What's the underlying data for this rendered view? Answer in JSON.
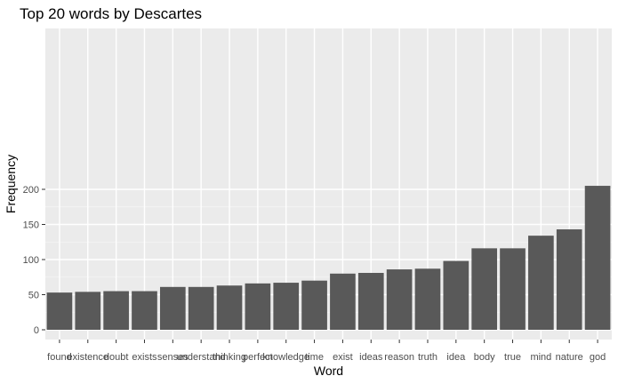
{
  "chart_data": {
    "type": "bar",
    "title": "Top 20 words by Descartes",
    "xlabel": "Word",
    "ylabel": "Frequency",
    "categories": [
      "found",
      "existence",
      "doubt",
      "exists",
      "senses",
      "understand",
      "thinking",
      "perfect",
      "knowledge",
      "time",
      "exist",
      "ideas",
      "reason",
      "truth",
      "idea",
      "body",
      "true",
      "mind",
      "nature",
      "god"
    ],
    "values": [
      53,
      54,
      55,
      55,
      61,
      61,
      63,
      66,
      67,
      70,
      80,
      81,
      86,
      87,
      98,
      116,
      116,
      134,
      143,
      205
    ],
    "ylim": [
      0,
      213
    ],
    "yticks": [
      0,
      50,
      100,
      150,
      200
    ],
    "ytick_labels": [
      "0",
      "50",
      "100",
      "150",
      "200"
    ],
    "grid": true,
    "legend": "none",
    "colors": {
      "bar": "#595959",
      "panel": "#ebebeb",
      "grid_major": "#ffffff",
      "grid_minor": "#f5f5f5"
    }
  }
}
